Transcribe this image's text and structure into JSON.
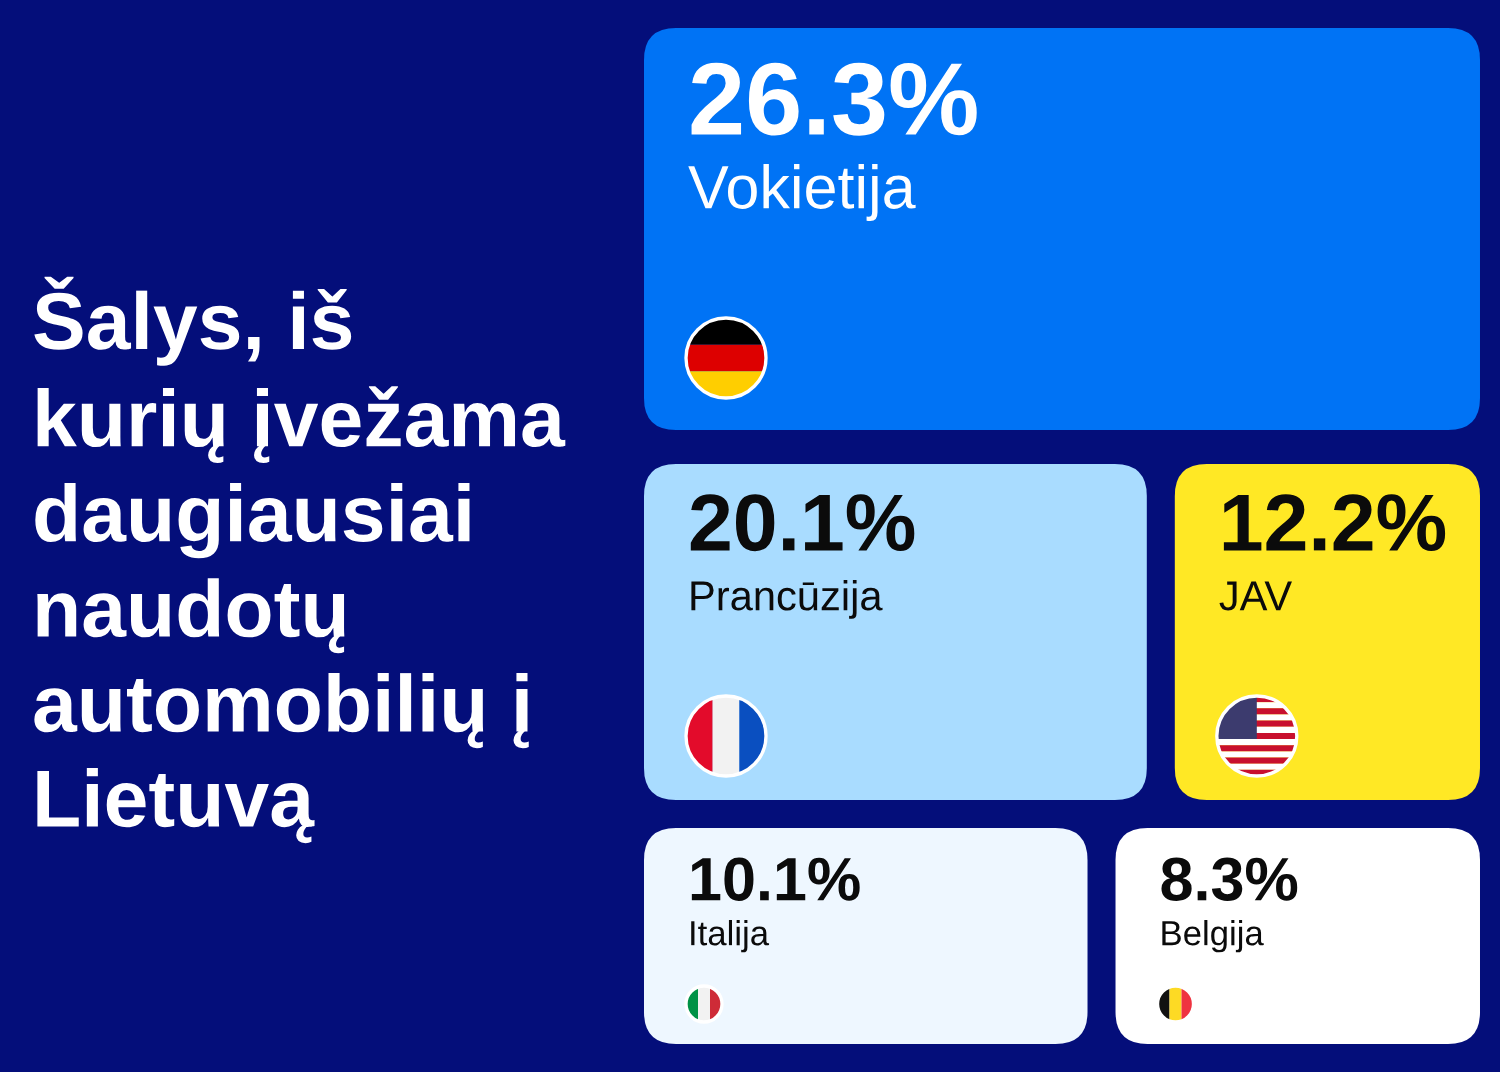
{
  "chart_data": {
    "type": "other",
    "title": "Šalys, iš\nkurių įvežama\ndaugiausiai\nnaudotų\nautomobilių į\nLietuvą",
    "categories": [
      "Vokietija",
      "Prancūzija",
      "JAV",
      "Italija",
      "Belgija"
    ],
    "values": [
      26.3,
      20.1,
      12.2,
      10.1,
      8.3
    ],
    "value_labels": [
      "26.3%",
      "20.1%",
      "12.2%",
      "10.1%",
      "8.3%"
    ],
    "colors": [
      "#0073f5",
      "#a9dcff",
      "#ffe825",
      "#eef7ff",
      "#ffffff"
    ]
  }
}
